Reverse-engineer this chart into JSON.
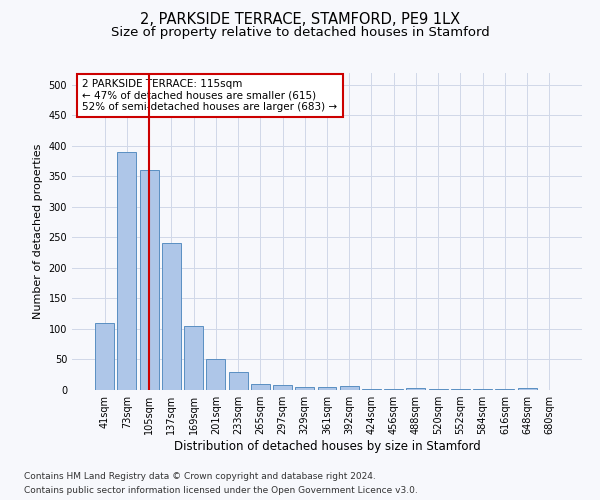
{
  "title1": "2, PARKSIDE TERRACE, STAMFORD, PE9 1LX",
  "title2": "Size of property relative to detached houses in Stamford",
  "xlabel": "Distribution of detached houses by size in Stamford",
  "ylabel": "Number of detached properties",
  "categories": [
    "41sqm",
    "73sqm",
    "105sqm",
    "137sqm",
    "169sqm",
    "201sqm",
    "233sqm",
    "265sqm",
    "297sqm",
    "329sqm",
    "361sqm",
    "392sqm",
    "424sqm",
    "456sqm",
    "488sqm",
    "520sqm",
    "552sqm",
    "584sqm",
    "616sqm",
    "648sqm",
    "680sqm"
  ],
  "values": [
    110,
    390,
    360,
    240,
    105,
    50,
    30,
    10,
    8,
    5,
    5,
    7,
    1,
    1,
    4,
    1,
    1,
    1,
    1,
    4,
    0
  ],
  "bar_color": "#aec6e8",
  "bar_edge_color": "#5a8fc2",
  "vline_x_idx": 2,
  "vline_color": "#cc0000",
  "annotation_text": "2 PARKSIDE TERRACE: 115sqm\n← 47% of detached houses are smaller (615)\n52% of semi-detached houses are larger (683) →",
  "annotation_box_color": "#ffffff",
  "annotation_box_edge": "#cc0000",
  "ylim": [
    0,
    520
  ],
  "yticks": [
    0,
    50,
    100,
    150,
    200,
    250,
    300,
    350,
    400,
    450,
    500
  ],
  "footer1": "Contains HM Land Registry data © Crown copyright and database right 2024.",
  "footer2": "Contains public sector information licensed under the Open Government Licence v3.0.",
  "bg_color": "#f7f8fc",
  "grid_color": "#d0d8e8",
  "title1_fontsize": 10.5,
  "title2_fontsize": 9.5,
  "tick_fontsize": 7,
  "ylabel_fontsize": 8,
  "xlabel_fontsize": 8.5,
  "footer_fontsize": 6.5,
  "annot_fontsize": 7.5
}
